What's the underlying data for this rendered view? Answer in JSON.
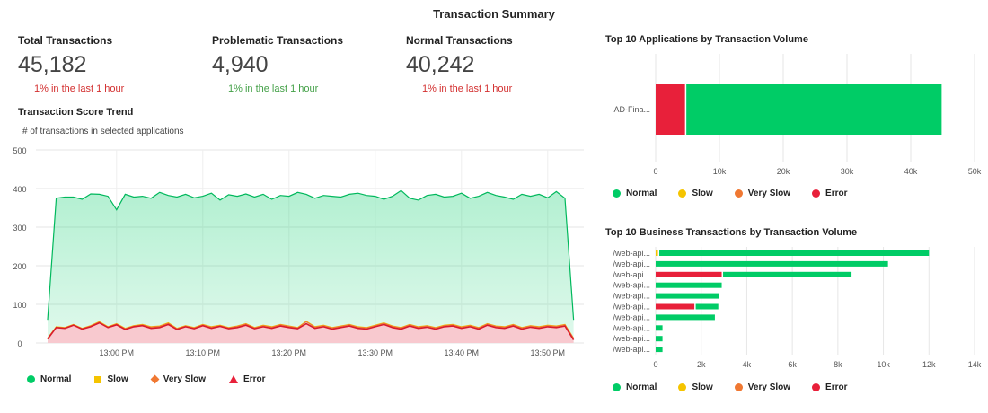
{
  "title": "Transaction Summary",
  "kpis": [
    {
      "label": "Total Transactions",
      "value": "45,182",
      "delta": "1% in the last 1 hour",
      "delta_color": "#d32f2f"
    },
    {
      "label": "Problematic Transactions",
      "value": "4,940",
      "delta": "1% in the last 1 hour",
      "delta_color": "#43a047"
    },
    {
      "label": "Normal Transactions",
      "value": "40,242",
      "delta": "1% in the last 1 hour",
      "delta_color": "#d32f2f"
    }
  ],
  "colors": {
    "Normal": "#00cc66",
    "Slow": "#f5c400",
    "Very Slow": "#f07832",
    "Error": "#e8203a"
  },
  "chart_data": [
    {
      "type": "area",
      "title": "Transaction Score Trend",
      "subtitle": "# of transactions in selected applications",
      "ylim": [
        0,
        500
      ],
      "yticks": [
        "0",
        "100",
        "200",
        "300",
        "400",
        "500"
      ],
      "x_start": "12:52",
      "x_step_minutes": 1,
      "xticks": [
        "13:00 PM",
        "13:10 PM",
        "13:20 PM",
        "13:30 PM",
        "13:40 PM",
        "13:50 PM"
      ],
      "grid": true,
      "legend": "bottom-left",
      "series": [
        {
          "name": "Normal",
          "values": [
            60,
            375,
            378,
            378,
            372,
            386,
            385,
            380,
            345,
            385,
            378,
            380,
            375,
            390,
            382,
            378,
            385,
            376,
            380,
            388,
            370,
            384,
            380,
            386,
            378,
            385,
            372,
            382,
            380,
            390,
            385,
            375,
            382,
            380,
            378,
            385,
            388,
            382,
            380,
            372,
            380,
            395,
            375,
            370,
            382,
            385,
            378,
            380,
            388,
            375,
            380,
            390,
            382,
            378,
            372,
            385,
            380,
            385,
            376,
            392,
            375,
            60
          ]
        },
        {
          "name": "Slow",
          "values": [
            12,
            42,
            40,
            48,
            38,
            45,
            55,
            42,
            50,
            38,
            45,
            48,
            42,
            44,
            52,
            38,
            45,
            40,
            48,
            42,
            46,
            40,
            44,
            50,
            40,
            46,
            42,
            48,
            44,
            40,
            56,
            42,
            46,
            40,
            44,
            48,
            42,
            40,
            46,
            52,
            44,
            40,
            48,
            42,
            45,
            40,
            46,
            48,
            42,
            46,
            40,
            50,
            44,
            42,
            48,
            40,
            45,
            42,
            46,
            44,
            48,
            12
          ]
        },
        {
          "name": "Very Slow",
          "values": [
            12,
            41,
            39,
            47,
            37,
            44,
            54,
            41,
            49,
            37,
            44,
            47,
            41,
            43,
            51,
            37,
            44,
            39,
            47,
            41,
            45,
            39,
            43,
            49,
            39,
            45,
            41,
            47,
            43,
            39,
            55,
            41,
            45,
            39,
            43,
            47,
            41,
            39,
            45,
            51,
            43,
            39,
            47,
            41,
            44,
            39,
            45,
            47,
            41,
            45,
            39,
            49,
            43,
            41,
            47,
            39,
            44,
            41,
            45,
            43,
            47,
            12
          ]
        },
        {
          "name": "Error",
          "values": [
            10,
            40,
            38,
            46,
            36,
            42,
            52,
            40,
            47,
            35,
            42,
            45,
            38,
            40,
            48,
            35,
            42,
            37,
            45,
            38,
            43,
            37,
            40,
            46,
            37,
            42,
            38,
            44,
            40,
            37,
            50,
            38,
            42,
            36,
            40,
            44,
            38,
            36,
            42,
            48,
            40,
            36,
            44,
            38,
            41,
            36,
            42,
            44,
            38,
            42,
            36,
            46,
            40,
            38,
            44,
            36,
            41,
            38,
            42,
            40,
            44,
            8
          ]
        }
      ]
    },
    {
      "type": "bar",
      "orientation": "horizontal",
      "stacked": true,
      "title": "Top 10 Applications by Transaction Volume",
      "categories": [
        "AD-Fina..."
      ],
      "xlim": [
        0,
        50000
      ],
      "xticks": [
        "0",
        "10k",
        "20k",
        "30k",
        "40k",
        "50k"
      ],
      "legend": "bottom-left",
      "series": [
        {
          "name": "Normal",
          "values": [
            40242
          ]
        },
        {
          "name": "Slow",
          "values": [
            0
          ]
        },
        {
          "name": "Very Slow",
          "values": [
            0
          ]
        },
        {
          "name": "Error",
          "values": [
            4600
          ]
        }
      ]
    },
    {
      "type": "bar",
      "orientation": "horizontal",
      "stacked": true,
      "title": "Top 10 Business Transactions by Transaction Volume",
      "categories": [
        "/web-api...",
        "/web-api...",
        "/web-api...",
        "/web-api...",
        "/web-api...",
        "/web-api...",
        "/web-api...",
        "/web-api...",
        "/web-api...",
        "/web-api..."
      ],
      "xlim": [
        0,
        14000
      ],
      "xticks": [
        "0",
        "2k",
        "4k",
        "6k",
        "8k",
        "10k",
        "12k",
        "14k"
      ],
      "legend": "bottom-left",
      "series": [
        {
          "name": "Normal",
          "values": [
            11900,
            10200,
            5700,
            2900,
            2800,
            1050,
            2600,
            300,
            300,
            300
          ]
        },
        {
          "name": "Slow",
          "values": [
            100,
            0,
            0,
            0,
            0,
            0,
            0,
            0,
            0,
            0
          ]
        },
        {
          "name": "Very Slow",
          "values": [
            0,
            0,
            0,
            0,
            0,
            0,
            0,
            0,
            0,
            0
          ]
        },
        {
          "name": "Error",
          "values": [
            0,
            0,
            2900,
            0,
            0,
            1700,
            0,
            0,
            0,
            0
          ]
        }
      ]
    }
  ]
}
